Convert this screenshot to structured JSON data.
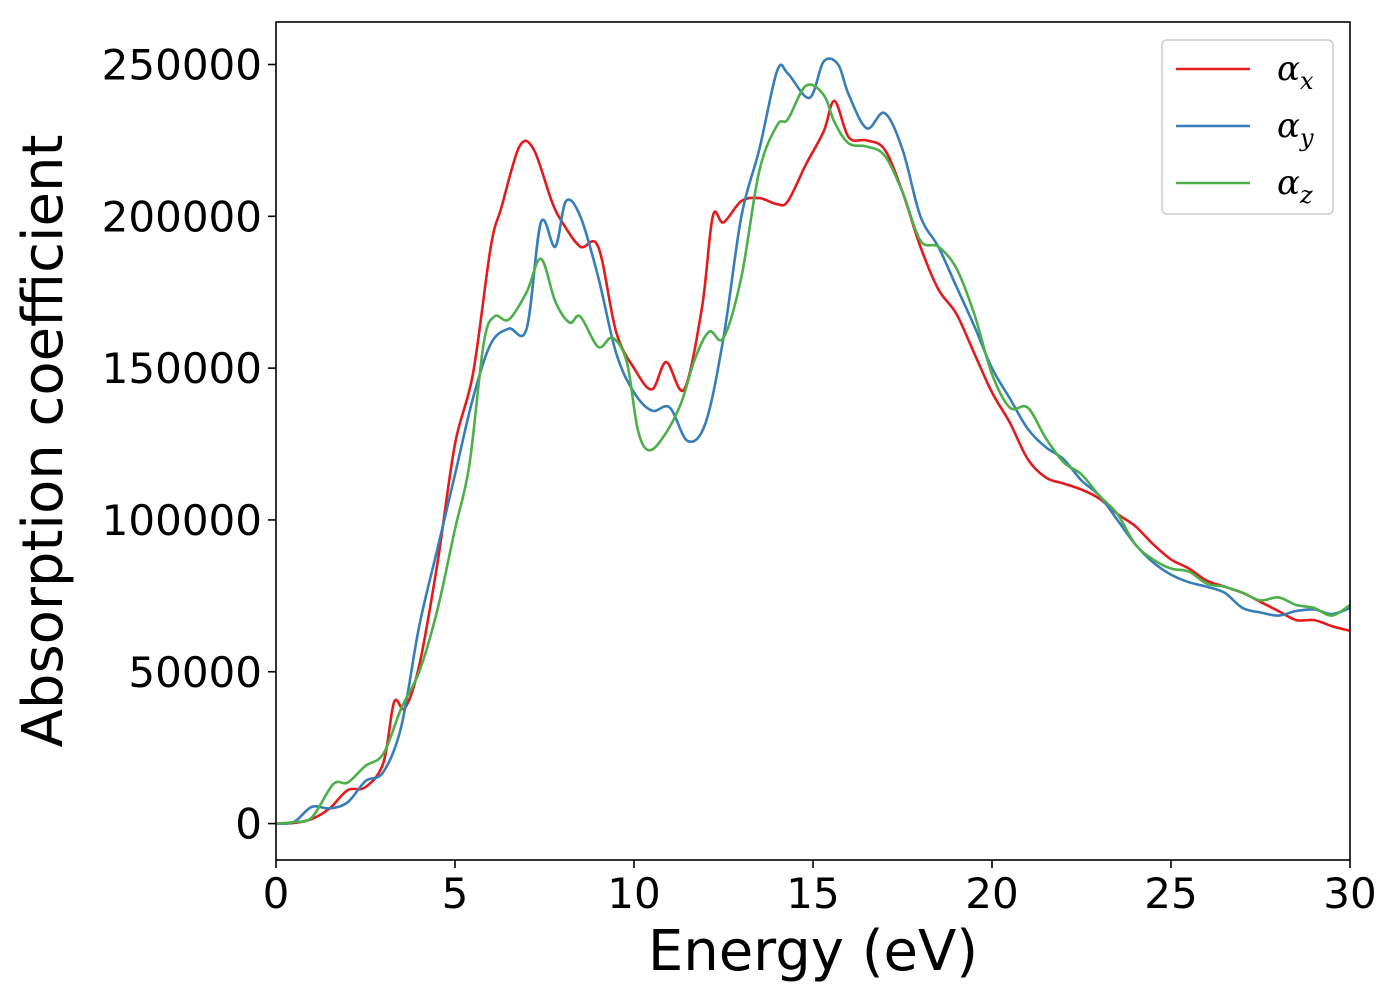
{
  "chart_data": {
    "type": "line",
    "title": "",
    "xlabel": "Energy (eV)",
    "ylabel": "Absorption coefficient",
    "xlim": [
      0,
      30
    ],
    "ylim": [
      -12000,
      264000
    ],
    "x_ticks": [
      0,
      5,
      10,
      15,
      20,
      25,
      30
    ],
    "x_tick_labels": [
      "0",
      "5",
      "10",
      "15",
      "20",
      "25",
      "30"
    ],
    "y_ticks": [
      0,
      50000,
      100000,
      150000,
      200000,
      250000
    ],
    "y_tick_labels": [
      "0",
      "50000",
      "100000",
      "150000",
      "200000",
      "250000"
    ],
    "grid": false,
    "legend_position": "top-right",
    "series": [
      {
        "name": "α_x",
        "symbol": "α",
        "subscript": "x",
        "color": "#e41a1c",
        "x": [
          0,
          0.5,
          1,
          1.5,
          2,
          2.5,
          3,
          3.3,
          3.6,
          4,
          4.5,
          5,
          5.5,
          6,
          6.3,
          6.8,
          7.2,
          7.7,
          8,
          8.5,
          9,
          9.5,
          10,
          10.5,
          10.9,
          11.4,
          11.9,
          12.2,
          12.5,
          13,
          13.5,
          14,
          14.3,
          14.8,
          15.3,
          15.6,
          16,
          16.5,
          17,
          17.5,
          18,
          18.5,
          19,
          19.5,
          20,
          20.5,
          21,
          21.5,
          22,
          22.5,
          23,
          23.5,
          24,
          24.5,
          25,
          25.5,
          26,
          26.5,
          27,
          27.5,
          28,
          28.5,
          29,
          29.5,
          30
        ],
        "y": [
          0,
          200,
          1500,
          5000,
          11000,
          12000,
          20000,
          40000,
          38000,
          52000,
          85000,
          125000,
          148000,
          190000,
          203000,
          223000,
          222000,
          205000,
          198000,
          190000,
          190000,
          162000,
          150000,
          143000,
          152000,
          143000,
          170000,
          200000,
          198000,
          205000,
          206000,
          204000,
          205000,
          217000,
          228000,
          238000,
          226000,
          225000,
          222000,
          208000,
          190000,
          176000,
          168000,
          155000,
          142000,
          132000,
          120000,
          114000,
          112000,
          110000,
          107000,
          102000,
          98000,
          92000,
          87000,
          84000,
          80000,
          78000,
          76000,
          73000,
          70000,
          67000,
          67000,
          65000,
          63500
        ]
      },
      {
        "name": "α_y",
        "symbol": "α",
        "subscript": "y",
        "color": "#377eb8",
        "x": [
          0,
          0.5,
          1,
          1.5,
          2,
          2.5,
          3,
          3.5,
          4,
          4.5,
          5,
          5.5,
          6,
          6.5,
          7,
          7.4,
          7.8,
          8.1,
          8.5,
          9,
          9.5,
          10,
          10.5,
          11,
          11.5,
          12,
          12.5,
          13,
          13.5,
          14,
          14.3,
          14.9,
          15.3,
          15.7,
          16,
          16.5,
          17,
          17.5,
          18,
          18.5,
          19,
          19.5,
          20,
          20.5,
          21,
          21.5,
          22,
          22.5,
          23,
          23.5,
          24,
          24.5,
          25,
          25.5,
          26,
          26.5,
          27,
          27.5,
          28,
          28.5,
          29,
          29.5,
          30
        ],
        "y": [
          0,
          500,
          5500,
          5000,
          7000,
          14000,
          17000,
          32000,
          65000,
          90000,
          115000,
          140000,
          158000,
          163000,
          163000,
          198000,
          190000,
          205000,
          200000,
          180000,
          155000,
          142000,
          136000,
          137000,
          126000,
          132000,
          160000,
          200000,
          222000,
          248000,
          247000,
          239000,
          251000,
          250000,
          240000,
          229000,
          234000,
          222000,
          200000,
          190000,
          177000,
          164000,
          150000,
          140000,
          130000,
          124000,
          120000,
          113000,
          108000,
          100000,
          92000,
          86000,
          82000,
          79500,
          78000,
          76000,
          71000,
          69500,
          68500,
          70000,
          70500,
          69000,
          71000
        ]
      },
      {
        "name": "α_z",
        "symbol": "α",
        "subscript": "z",
        "color": "#4daf4a",
        "x": [
          0,
          0.5,
          1,
          1.6,
          2,
          2.5,
          3,
          3.5,
          4,
          4.5,
          5,
          5.4,
          5.8,
          6.1,
          6.5,
          7,
          7.4,
          7.8,
          8.2,
          8.5,
          9,
          9.4,
          9.8,
          10.1,
          10.4,
          10.8,
          11.3,
          11.7,
          12.1,
          12.5,
          13,
          13.5,
          14,
          14.3,
          14.8,
          15.3,
          15.6,
          16,
          16.5,
          17,
          17.5,
          18,
          18.5,
          19,
          19.5,
          20,
          20.5,
          21,
          21.5,
          22,
          22.5,
          23,
          23.5,
          24,
          24.5,
          25,
          25.5,
          26,
          26.5,
          27,
          27.5,
          28,
          28.5,
          29,
          29.5,
          30
        ],
        "y": [
          0,
          500,
          2000,
          13000,
          13500,
          19000,
          23000,
          38000,
          50000,
          70000,
          97000,
          118000,
          158000,
          167000,
          166000,
          175000,
          186000,
          172000,
          165000,
          167000,
          157000,
          160000,
          152000,
          130000,
          123000,
          127000,
          138000,
          153000,
          162000,
          160000,
          180000,
          215000,
          230000,
          232000,
          243000,
          240000,
          231000,
          224000,
          223000,
          220000,
          208000,
          192000,
          190000,
          183000,
          168000,
          148000,
          137000,
          137000,
          127000,
          119000,
          115000,
          108000,
          102000,
          92000,
          87000,
          84000,
          83000,
          79000,
          78000,
          76000,
          73500,
          74500,
          72000,
          71000,
          68500,
          72000
        ]
      }
    ]
  }
}
